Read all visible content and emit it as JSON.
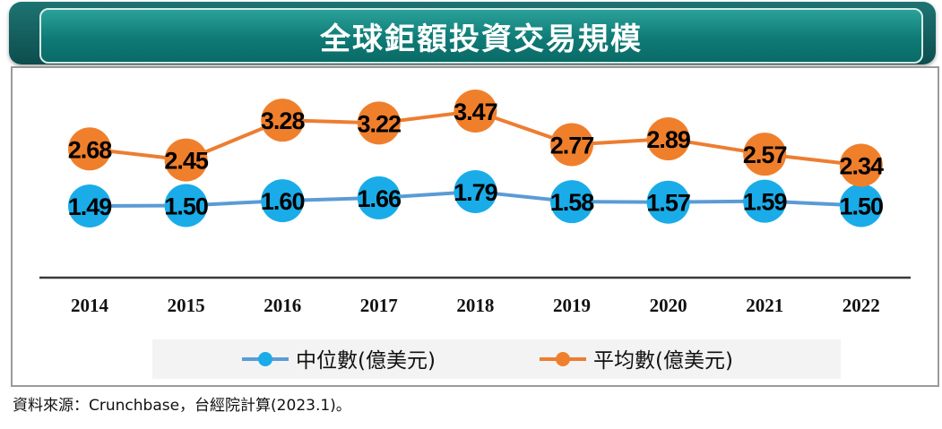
{
  "title": "全球鉅額投資交易規模",
  "source": "資料來源：Crunchbase，台經院計算(2023.1)。",
  "colors": {
    "median": "#1aace8",
    "median_line": "#5b9bd5",
    "mean": "#f07f2c",
    "mean_line": "#ed7d31",
    "title_bg": "#0f7b76"
  },
  "chart_data": {
    "type": "line",
    "categories": [
      "2014",
      "2015",
      "2016",
      "2017",
      "2018",
      "2019",
      "2020",
      "2021",
      "2022"
    ],
    "series": [
      {
        "name": "中位數(億美元)",
        "values": [
          1.49,
          1.5,
          1.6,
          1.66,
          1.79,
          1.58,
          1.57,
          1.59,
          1.5
        ],
        "labels": [
          "1.49",
          "1.50",
          "1.60",
          "1.66",
          "1.79",
          "1.58",
          "1.57",
          "1.59",
          "1.50"
        ]
      },
      {
        "name": "平均數(億美元)",
        "values": [
          2.68,
          2.45,
          3.28,
          3.22,
          3.47,
          2.77,
          2.89,
          2.57,
          2.34
        ],
        "labels": [
          "2.68",
          "2.45",
          "3.28",
          "3.22",
          "3.47",
          "2.77",
          "2.89",
          "2.57",
          "2.34"
        ]
      }
    ],
    "legend_position": "bottom",
    "grid": false
  }
}
